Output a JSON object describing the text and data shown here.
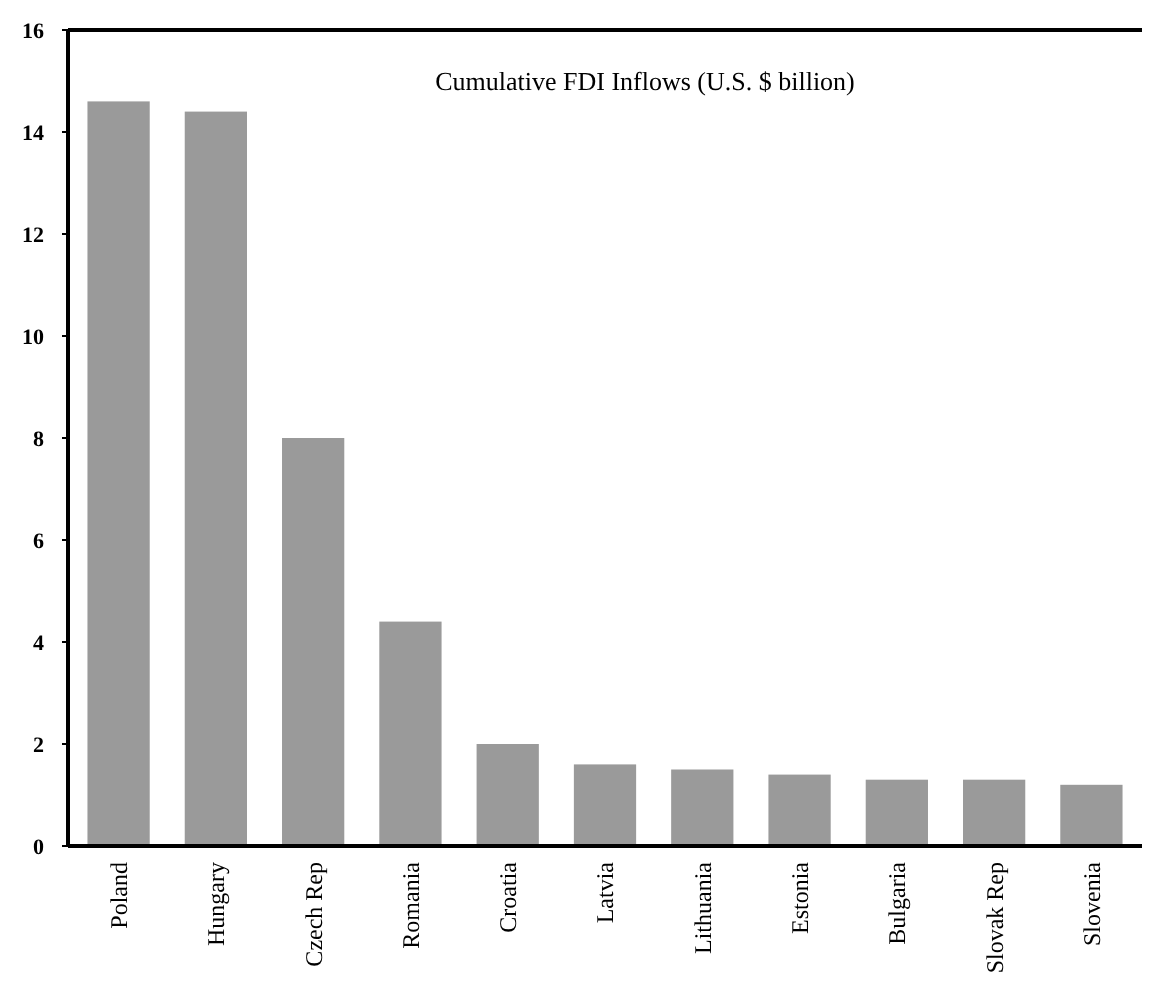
{
  "chart_data": {
    "type": "bar",
    "title": "Cumulative FDI Inflows (U.S. $ billion)",
    "categories": [
      "Poland",
      "Hungary",
      "Czech Rep",
      "Romania",
      "Croatia",
      "Latvia",
      "Lithuania",
      "Estonia",
      "Bulgaria",
      "Slovak Rep",
      "Slovenia"
    ],
    "values": [
      14.6,
      14.4,
      8.0,
      4.4,
      2.0,
      1.6,
      1.5,
      1.4,
      1.3,
      1.3,
      1.2
    ],
    "color": "#9a9a9a",
    "ylim": [
      0,
      16
    ],
    "yticks": [
      0,
      2,
      4,
      6,
      8,
      10,
      12,
      14,
      16
    ],
    "grid": false
  }
}
